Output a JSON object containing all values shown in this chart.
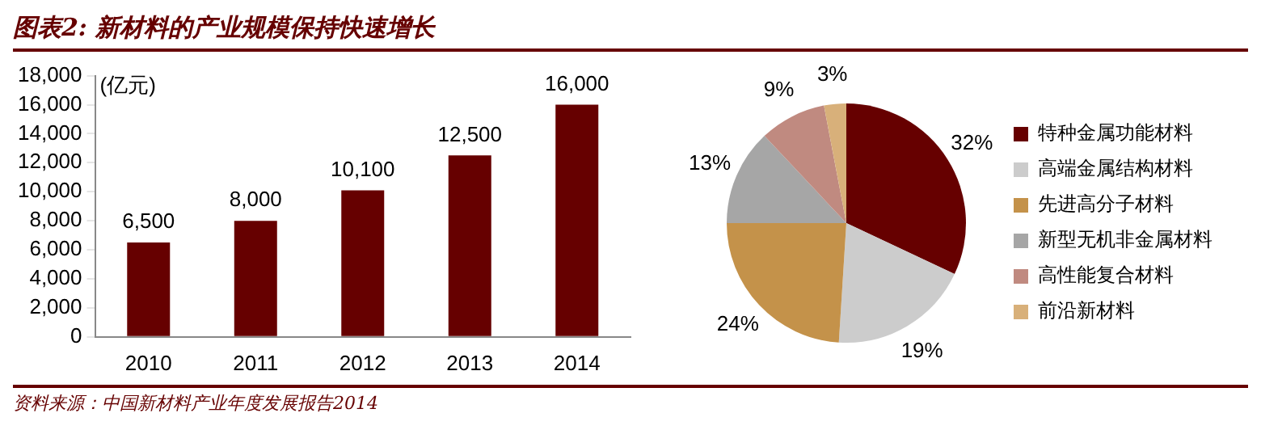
{
  "chart_data": [
    {
      "type": "bar",
      "title": "图表2: 新材料的产业规模保持快速增长",
      "ylabel": "(亿元)",
      "categories": [
        "2010",
        "2011",
        "2012",
        "2013",
        "2014"
      ],
      "values": [
        6500,
        8000,
        10100,
        12500,
        16000
      ],
      "color": "#660000",
      "ylim": [
        0,
        18000
      ],
      "yticks": [
        {
          "value": 0,
          "label": "0"
        },
        {
          "value": 2000,
          "label": "2,000"
        },
        {
          "value": 4000,
          "label": "4,000"
        },
        {
          "value": 6000,
          "label": "6,000"
        },
        {
          "value": 8000,
          "label": "8,000"
        },
        {
          "value": 10000,
          "label": "10,000"
        },
        {
          "value": 12000,
          "label": "12,000"
        },
        {
          "value": 14000,
          "label": "14,000"
        },
        {
          "value": 16000,
          "label": "16,000"
        },
        {
          "value": 18000,
          "label": "18,000"
        }
      ],
      "value_labels": [
        "6,500",
        "8,000",
        "10,100",
        "12,500",
        "16,000"
      ],
      "grid": false,
      "legend": false,
      "annotations": [
        "资料来源：中国新材料产业年度发展报告2014"
      ]
    },
    {
      "type": "pie",
      "categories": [
        "特种金属功能材料",
        "高端金属结构材料",
        "先进高分子材料",
        "新型无机非金属材料",
        "高性能复合材料",
        "前沿新材料"
      ],
      "values": [
        32,
        19,
        24,
        13,
        9,
        3
      ],
      "colors": [
        "#660000",
        "#cccccc",
        "#c4924a",
        "#a6a6a6",
        "#c08a80",
        "#d8b07a"
      ],
      "value_labels": [
        "32%",
        "19%",
        "24%",
        "13%",
        "9%",
        "3%"
      ],
      "legend": "right"
    }
  ]
}
